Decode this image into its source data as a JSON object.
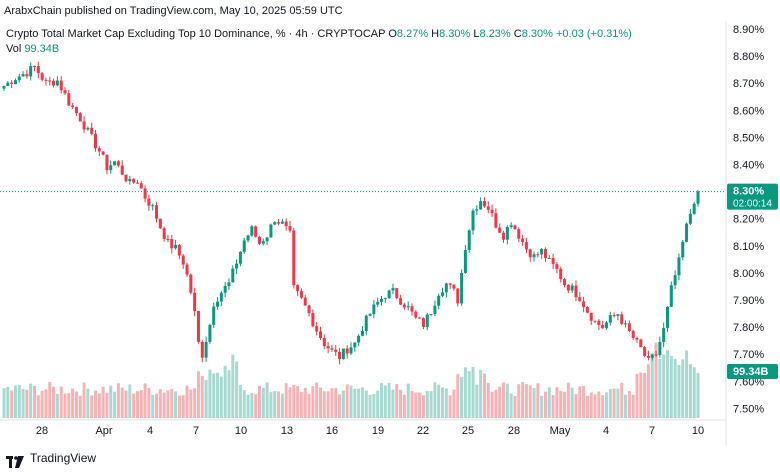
{
  "header": {
    "published": "ArabxChain published on TradingView.com, May 10, 2025 05:59 UTC"
  },
  "legend": {
    "symbol": "Crypto Total Market Cap Excluding Top 10 Dominance, % · 4h · CRYPTOCAP",
    "open_label": "O",
    "open": "8.27%",
    "high_label": "H",
    "high": "8.30%",
    "low_label": "L",
    "low": "8.23%",
    "close_label": "C",
    "close": "8.30%",
    "change": "+0.03 (+0.31%)",
    "vol_label": "Vol",
    "vol_value": "99.34B"
  },
  "price_tag": {
    "price": "8.30%",
    "countdown": "02:00:14"
  },
  "volume_tag": {
    "value": "99.34B"
  },
  "footer": {
    "brand": "TradingView"
  },
  "colors": {
    "up": "#089981",
    "down": "#f23645",
    "up_vol": "#a7d9d0",
    "down_vol": "#f7b2b6",
    "axis_text": "#131722",
    "grid": "#f0f3fa"
  },
  "chart_data": {
    "type": "candlestick",
    "title": "Crypto Total Market Cap Excluding Top 10 Dominance, %",
    "interval": "4h",
    "source": "CRYPTOCAP",
    "y_axis_ticks": [
      "8.90%",
      "8.80%",
      "8.70%",
      "8.60%",
      "8.50%",
      "8.40%",
      "8.30%",
      "8.20%",
      "8.10%",
      "8.00%",
      "7.90%",
      "7.80%",
      "7.70%",
      "7.60%",
      "7.50%"
    ],
    "ylim": [
      7.45,
      8.93
    ],
    "x_axis_ticks": [
      "28",
      "Apr",
      "4",
      "7",
      "10",
      "13",
      "16",
      "19",
      "22",
      "25",
      "28",
      "May",
      "4",
      "7",
      "10"
    ],
    "current_price": 8.3,
    "close_path": [
      [
        0,
        8.69
      ],
      [
        3,
        8.72
      ],
      [
        6,
        8.74
      ],
      [
        8,
        8.76
      ],
      [
        11,
        8.7
      ],
      [
        14,
        8.71
      ],
      [
        17,
        8.63
      ],
      [
        20,
        8.57
      ],
      [
        22,
        8.52
      ],
      [
        25,
        8.45
      ],
      [
        27,
        8.39
      ],
      [
        29,
        8.41
      ],
      [
        31,
        8.37
      ],
      [
        33,
        8.33
      ],
      [
        35,
        8.34
      ],
      [
        37,
        8.28
      ],
      [
        39,
        8.24
      ],
      [
        41,
        8.17
      ],
      [
        43,
        8.11
      ],
      [
        45,
        8.09
      ],
      [
        47,
        8.04
      ],
      [
        48,
        7.99
      ],
      [
        49,
        7.93
      ],
      [
        50,
        7.85
      ],
      [
        51,
        7.74
      ],
      [
        52,
        7.7
      ],
      [
        54,
        7.81
      ],
      [
        55,
        7.89
      ],
      [
        57,
        7.93
      ],
      [
        59,
        7.96
      ],
      [
        61,
        8.04
      ],
      [
        63,
        8.12
      ],
      [
        65,
        8.16
      ],
      [
        67,
        8.11
      ],
      [
        69,
        8.14
      ],
      [
        71,
        8.2
      ],
      [
        73,
        8.18
      ],
      [
        75,
        8.14
      ],
      [
        76,
        7.94
      ],
      [
        78,
        7.9
      ],
      [
        80,
        7.85
      ],
      [
        82,
        7.79
      ],
      [
        84,
        7.74
      ],
      [
        86,
        7.71
      ],
      [
        88,
        7.69
      ],
      [
        90,
        7.72
      ],
      [
        92,
        7.74
      ],
      [
        94,
        7.8
      ],
      [
        96,
        7.85
      ],
      [
        98,
        7.89
      ],
      [
        100,
        7.92
      ],
      [
        102,
        7.93
      ],
      [
        104,
        7.9
      ],
      [
        106,
        7.87
      ],
      [
        108,
        7.83
      ],
      [
        110,
        7.81
      ],
      [
        112,
        7.86
      ],
      [
        114,
        7.93
      ],
      [
        116,
        7.96
      ],
      [
        118,
        7.93
      ],
      [
        119,
        7.9
      ],
      [
        121,
        8.1
      ],
      [
        123,
        8.23
      ],
      [
        125,
        8.27
      ],
      [
        127,
        8.24
      ],
      [
        129,
        8.18
      ],
      [
        131,
        8.14
      ],
      [
        133,
        8.19
      ],
      [
        135,
        8.14
      ],
      [
        137,
        8.09
      ],
      [
        139,
        8.06
      ],
      [
        141,
        8.08
      ],
      [
        143,
        8.04
      ],
      [
        145,
        8.01
      ],
      [
        147,
        7.96
      ],
      [
        149,
        7.94
      ],
      [
        151,
        7.91
      ],
      [
        153,
        7.86
      ],
      [
        155,
        7.82
      ],
      [
        157,
        7.8
      ],
      [
        159,
        7.83
      ],
      [
        161,
        7.85
      ],
      [
        163,
        7.8
      ],
      [
        165,
        7.76
      ],
      [
        167,
        7.72
      ],
      [
        169,
        7.67
      ],
      [
        171,
        7.7
      ],
      [
        173,
        7.79
      ],
      [
        175,
        7.94
      ],
      [
        177,
        8.04
      ],
      [
        178,
        8.11
      ],
      [
        179,
        8.17
      ],
      [
        180,
        8.22
      ],
      [
        181,
        8.27
      ],
      [
        182,
        8.3
      ]
    ],
    "volume_label": "Vol",
    "last_volume": "99.34B"
  }
}
